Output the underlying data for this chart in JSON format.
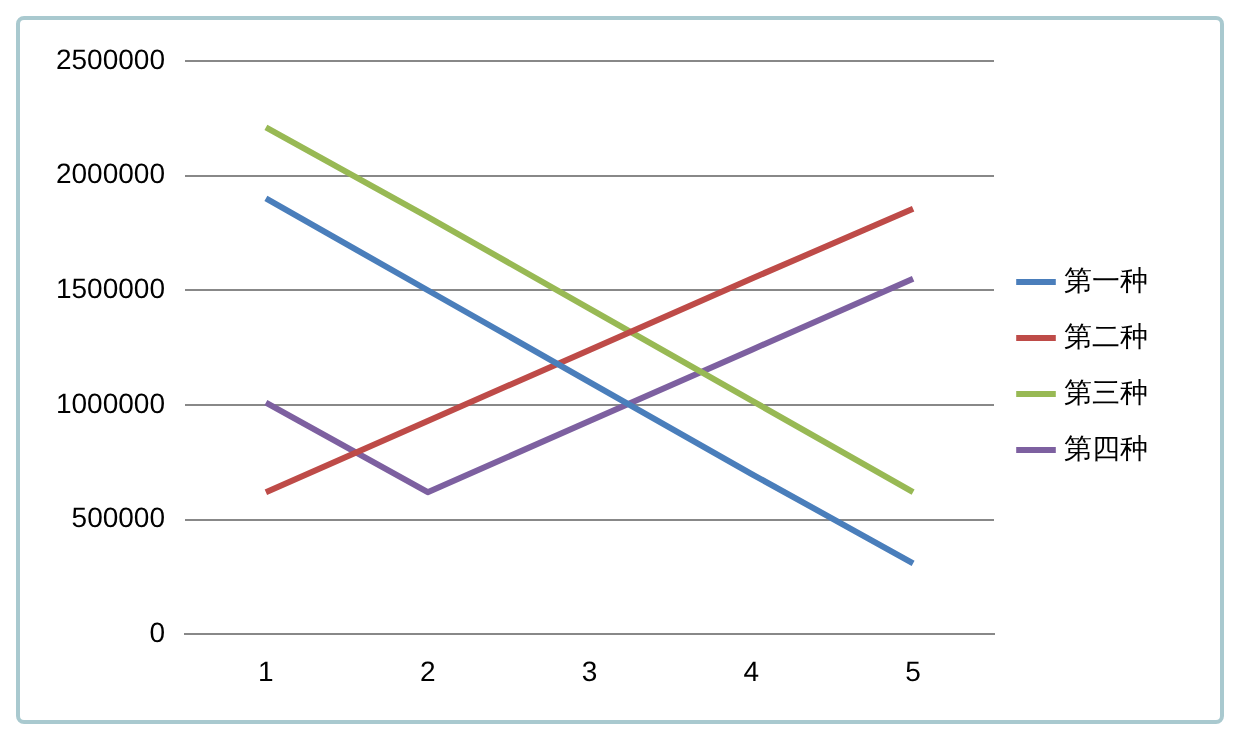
{
  "chart_data": {
    "type": "line",
    "categories": [
      "1",
      "2",
      "3",
      "4",
      "5"
    ],
    "series": [
      {
        "name": "第一种",
        "color": "#4a7ebb",
        "values": [
          1900000,
          1500000,
          1100000,
          700000,
          310000
        ]
      },
      {
        "name": "第二种",
        "color": "#be4b48",
        "values": [
          620000,
          930000,
          1240000,
          1550000,
          1855000
        ]
      },
      {
        "name": "第三种",
        "color": "#98b954",
        "values": [
          2210000,
          1820000,
          1420000,
          1020000,
          620000
        ]
      },
      {
        "name": "第四种",
        "color": "#7d60a0",
        "values": [
          1010000,
          620000,
          930000,
          1240000,
          1550000
        ]
      }
    ],
    "ylim": [
      0,
      2500000
    ],
    "yticks": [
      0,
      500000,
      1000000,
      1500000,
      2000000,
      2500000
    ],
    "grid": "y",
    "legend": "right",
    "marker": "none",
    "line_style": "solid"
  }
}
